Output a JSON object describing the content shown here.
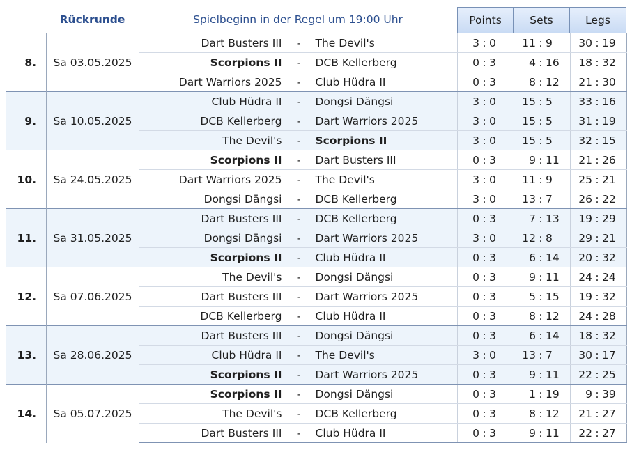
{
  "header": {
    "round_label": "Rückrunde",
    "info": "Spielbeginn in der Regel um 19:00 Uhr",
    "col_points": "Points",
    "col_sets": "Sets",
    "col_legs": "Legs"
  },
  "separator": "-",
  "score_sep": ":",
  "rounds": [
    {
      "num": "8.",
      "date": "Sa 03.05.2025",
      "matches": [
        {
          "home": "Dart Busters III",
          "home_bold": false,
          "away": "The Devil's",
          "away_bold": false,
          "points": [
            "3",
            "0"
          ],
          "sets": [
            "11",
            "9"
          ],
          "legs": [
            "30",
            "19"
          ]
        },
        {
          "home": "Scorpions II",
          "home_bold": true,
          "away": "DCB Kellerberg",
          "away_bold": false,
          "points": [
            "0",
            "3"
          ],
          "sets": [
            "4",
            "16"
          ],
          "legs": [
            "18",
            "32"
          ]
        },
        {
          "home": "Dart Warriors 2025",
          "home_bold": false,
          "away": "Club Hüdra II",
          "away_bold": false,
          "points": [
            "0",
            "3"
          ],
          "sets": [
            "8",
            "12"
          ],
          "legs": [
            "21",
            "30"
          ]
        }
      ]
    },
    {
      "num": "9.",
      "date": "Sa 10.05.2025",
      "matches": [
        {
          "home": "Club Hüdra II",
          "home_bold": false,
          "away": "Dongsi Dängsi",
          "away_bold": false,
          "points": [
            "3",
            "0"
          ],
          "sets": [
            "15",
            "5"
          ],
          "legs": [
            "33",
            "16"
          ]
        },
        {
          "home": "DCB Kellerberg",
          "home_bold": false,
          "away": "Dart Warriors 2025",
          "away_bold": false,
          "points": [
            "3",
            "0"
          ],
          "sets": [
            "15",
            "5"
          ],
          "legs": [
            "31",
            "19"
          ]
        },
        {
          "home": "The Devil's",
          "home_bold": false,
          "away": "Scorpions II",
          "away_bold": true,
          "points": [
            "3",
            "0"
          ],
          "sets": [
            "15",
            "5"
          ],
          "legs": [
            "32",
            "15"
          ]
        }
      ]
    },
    {
      "num": "10.",
      "date": "Sa 24.05.2025",
      "matches": [
        {
          "home": "Scorpions II",
          "home_bold": true,
          "away": "Dart Busters III",
          "away_bold": false,
          "points": [
            "0",
            "3"
          ],
          "sets": [
            "9",
            "11"
          ],
          "legs": [
            "21",
            "26"
          ]
        },
        {
          "home": "Dart Warriors 2025",
          "home_bold": false,
          "away": "The Devil's",
          "away_bold": false,
          "points": [
            "3",
            "0"
          ],
          "sets": [
            "11",
            "9"
          ],
          "legs": [
            "25",
            "21"
          ]
        },
        {
          "home": "Dongsi Dängsi",
          "home_bold": false,
          "away": "DCB Kellerberg",
          "away_bold": false,
          "points": [
            "3",
            "0"
          ],
          "sets": [
            "13",
            "7"
          ],
          "legs": [
            "26",
            "22"
          ]
        }
      ]
    },
    {
      "num": "11.",
      "date": "Sa 31.05.2025",
      "matches": [
        {
          "home": "Dart Busters III",
          "home_bold": false,
          "away": "DCB Kellerberg",
          "away_bold": false,
          "points": [
            "0",
            "3"
          ],
          "sets": [
            "7",
            "13"
          ],
          "legs": [
            "19",
            "29"
          ]
        },
        {
          "home": "Dongsi Dängsi",
          "home_bold": false,
          "away": "Dart Warriors 2025",
          "away_bold": false,
          "points": [
            "3",
            "0"
          ],
          "sets": [
            "12",
            "8"
          ],
          "legs": [
            "29",
            "21"
          ]
        },
        {
          "home": "Scorpions II",
          "home_bold": true,
          "away": "Club Hüdra II",
          "away_bold": false,
          "points": [
            "0",
            "3"
          ],
          "sets": [
            "6",
            "14"
          ],
          "legs": [
            "20",
            "32"
          ]
        }
      ]
    },
    {
      "num": "12.",
      "date": "Sa 07.06.2025",
      "matches": [
        {
          "home": "The Devil's",
          "home_bold": false,
          "away": "Dongsi Dängsi",
          "away_bold": false,
          "points": [
            "0",
            "3"
          ],
          "sets": [
            "9",
            "11"
          ],
          "legs": [
            "24",
            "24"
          ]
        },
        {
          "home": "Dart Busters III",
          "home_bold": false,
          "away": "Dart Warriors 2025",
          "away_bold": false,
          "points": [
            "0",
            "3"
          ],
          "sets": [
            "5",
            "15"
          ],
          "legs": [
            "19",
            "32"
          ]
        },
        {
          "home": "DCB Kellerberg",
          "home_bold": false,
          "away": "Club Hüdra II",
          "away_bold": false,
          "points": [
            "0",
            "3"
          ],
          "sets": [
            "8",
            "12"
          ],
          "legs": [
            "24",
            "28"
          ]
        }
      ]
    },
    {
      "num": "13.",
      "date": "Sa 28.06.2025",
      "matches": [
        {
          "home": "Dart Busters III",
          "home_bold": false,
          "away": "Dongsi Dängsi",
          "away_bold": false,
          "points": [
            "0",
            "3"
          ],
          "sets": [
            "6",
            "14"
          ],
          "legs": [
            "18",
            "32"
          ]
        },
        {
          "home": "Club Hüdra II",
          "home_bold": false,
          "away": "The Devil's",
          "away_bold": false,
          "points": [
            "3",
            "0"
          ],
          "sets": [
            "13",
            "7"
          ],
          "legs": [
            "30",
            "17"
          ]
        },
        {
          "home": "Scorpions II",
          "home_bold": true,
          "away": "Dart Warriors 2025",
          "away_bold": false,
          "points": [
            "0",
            "3"
          ],
          "sets": [
            "9",
            "11"
          ],
          "legs": [
            "22",
            "25"
          ]
        }
      ]
    },
    {
      "num": "14.",
      "date": "Sa 05.07.2025",
      "matches": [
        {
          "home": "Scorpions II",
          "home_bold": true,
          "away": "Dongsi Dängsi",
          "away_bold": false,
          "points": [
            "0",
            "3"
          ],
          "sets": [
            "1",
            "19"
          ],
          "legs": [
            "9",
            "39"
          ]
        },
        {
          "home": "The Devil's",
          "home_bold": false,
          "away": "DCB Kellerberg",
          "away_bold": false,
          "points": [
            "0",
            "3"
          ],
          "sets": [
            "8",
            "12"
          ],
          "legs": [
            "21",
            "27"
          ]
        },
        {
          "home": "Dart Busters III",
          "home_bold": false,
          "away": "Club Hüdra II",
          "away_bold": false,
          "points": [
            "0",
            "3"
          ],
          "sets": [
            "9",
            "11"
          ],
          "legs": [
            "22",
            "27"
          ]
        }
      ]
    }
  ]
}
